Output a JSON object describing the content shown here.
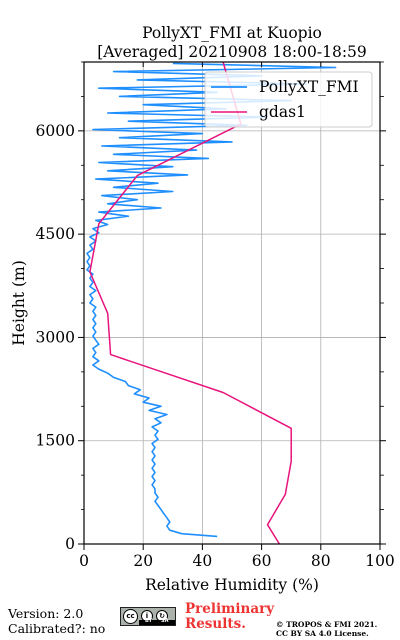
{
  "chart_data": {
    "type": "line",
    "title_line1": "PollyXT_FMI at Kuopio",
    "title_line2": "[Averaged] 20210908 18:00-18:59",
    "xlabel": "Relative Humidity (%)",
    "ylabel": "Height (m)",
    "xlim": [
      0,
      100
    ],
    "ylim": [
      0,
      7000
    ],
    "xticks": [
      0,
      20,
      40,
      60,
      80,
      100
    ],
    "yticks": [
      0,
      1500,
      3000,
      4500,
      6000
    ],
    "grid": true,
    "legend_position": "top-right",
    "series": [
      {
        "name": "PollyXT_FMI",
        "color": "#1f8fff",
        "points": [
          [
            45,
            110
          ],
          [
            33,
            150
          ],
          [
            29,
            200
          ],
          [
            28,
            260
          ],
          [
            29,
            320
          ],
          [
            28,
            380
          ],
          [
            27,
            440
          ],
          [
            26,
            500
          ],
          [
            25,
            560
          ],
          [
            24,
            620
          ],
          [
            25,
            680
          ],
          [
            24,
            740
          ],
          [
            24,
            800
          ],
          [
            23,
            860
          ],
          [
            24,
            920
          ],
          [
            23,
            980
          ],
          [
            24,
            1040
          ],
          [
            23,
            1100
          ],
          [
            24,
            1160
          ],
          [
            23,
            1220
          ],
          [
            24,
            1280
          ],
          [
            23,
            1340
          ],
          [
            24,
            1400
          ],
          [
            23,
            1460
          ],
          [
            25,
            1520
          ],
          [
            24,
            1580
          ],
          [
            25,
            1640
          ],
          [
            23,
            1700
          ],
          [
            26,
            1760
          ],
          [
            24,
            1820
          ],
          [
            28,
            1880
          ],
          [
            22,
            1940
          ],
          [
            26,
            2000
          ],
          [
            20,
            2060
          ],
          [
            22,
            2120
          ],
          [
            17,
            2180
          ],
          [
            19,
            2240
          ],
          [
            15,
            2300
          ],
          [
            14,
            2360
          ],
          [
            10,
            2420
          ],
          [
            8,
            2480
          ],
          [
            5,
            2540
          ],
          [
            3,
            2600
          ],
          [
            5,
            2660
          ],
          [
            3,
            2720
          ],
          [
            4,
            2780
          ],
          [
            3,
            2840
          ],
          [
            5,
            2900
          ],
          [
            4,
            2960
          ],
          [
            3,
            3020
          ],
          [
            4,
            3080
          ],
          [
            3,
            3140
          ],
          [
            4,
            3200
          ],
          [
            3,
            3260
          ],
          [
            4,
            3320
          ],
          [
            3,
            3380
          ],
          [
            4,
            3440
          ],
          [
            2,
            3500
          ],
          [
            3,
            3560
          ],
          [
            2,
            3620
          ],
          [
            4,
            3680
          ],
          [
            2,
            3740
          ],
          [
            3,
            3800
          ],
          [
            2,
            3860
          ],
          [
            3,
            3920
          ],
          [
            1,
            3980
          ],
          [
            2,
            4040
          ],
          [
            1,
            4100
          ],
          [
            2,
            4160
          ],
          [
            1,
            4220
          ],
          [
            3,
            4280
          ],
          [
            2,
            4340
          ],
          [
            4,
            4400
          ],
          [
            2,
            4460
          ],
          [
            5,
            4520
          ],
          [
            3,
            4580
          ],
          [
            8,
            4640
          ],
          [
            4,
            4700
          ],
          [
            15,
            4760
          ],
          [
            5,
            4820
          ],
          [
            26,
            4880
          ],
          [
            8,
            4940
          ],
          [
            18,
            5000
          ],
          [
            6,
            5060
          ],
          [
            30,
            5120
          ],
          [
            10,
            5180
          ],
          [
            25,
            5240
          ],
          [
            4,
            5300
          ],
          [
            35,
            5360
          ],
          [
            8,
            5420
          ],
          [
            30,
            5480
          ],
          [
            5,
            5540
          ],
          [
            42,
            5600
          ],
          [
            10,
            5660
          ],
          [
            38,
            5720
          ],
          [
            6,
            5780
          ],
          [
            50,
            5840
          ],
          [
            12,
            5900
          ],
          [
            40,
            5960
          ],
          [
            3,
            6020
          ],
          [
            55,
            6080
          ],
          [
            15,
            6140
          ],
          [
            62,
            6200
          ],
          [
            8,
            6260
          ],
          [
            48,
            6320
          ],
          [
            20,
            6380
          ],
          [
            70,
            6440
          ],
          [
            12,
            6500
          ],
          [
            45,
            6560
          ],
          [
            5,
            6620
          ],
          [
            75,
            6680
          ],
          [
            18,
            6740
          ],
          [
            60,
            6800
          ],
          [
            10,
            6860
          ],
          [
            85,
            6920
          ],
          [
            30,
            6980
          ]
        ]
      },
      {
        "name": "gdas1",
        "color": "#e8137c",
        "points": [
          [
            66,
            0
          ],
          [
            62,
            280
          ],
          [
            68,
            720
          ],
          [
            70,
            1200
          ],
          [
            70,
            1680
          ],
          [
            47,
            2200
          ],
          [
            9,
            2750
          ],
          [
            8,
            3350
          ],
          [
            2,
            3950
          ],
          [
            5,
            4650
          ],
          [
            18,
            5350
          ],
          [
            53,
            6100
          ],
          [
            47,
            7000
          ]
        ]
      }
    ]
  },
  "footer": {
    "version": "Version: 2.0",
    "calibrated": "Calibrated?: no",
    "preliminary_line1": "Preliminary",
    "preliminary_line2": "Results.",
    "license_line1": "© TROPOS & FMI 2021.",
    "license_line2": "CC BY SA 4.0 License.",
    "cc_label": "cc",
    "by_label": "BY",
    "sa_label": "SA"
  }
}
